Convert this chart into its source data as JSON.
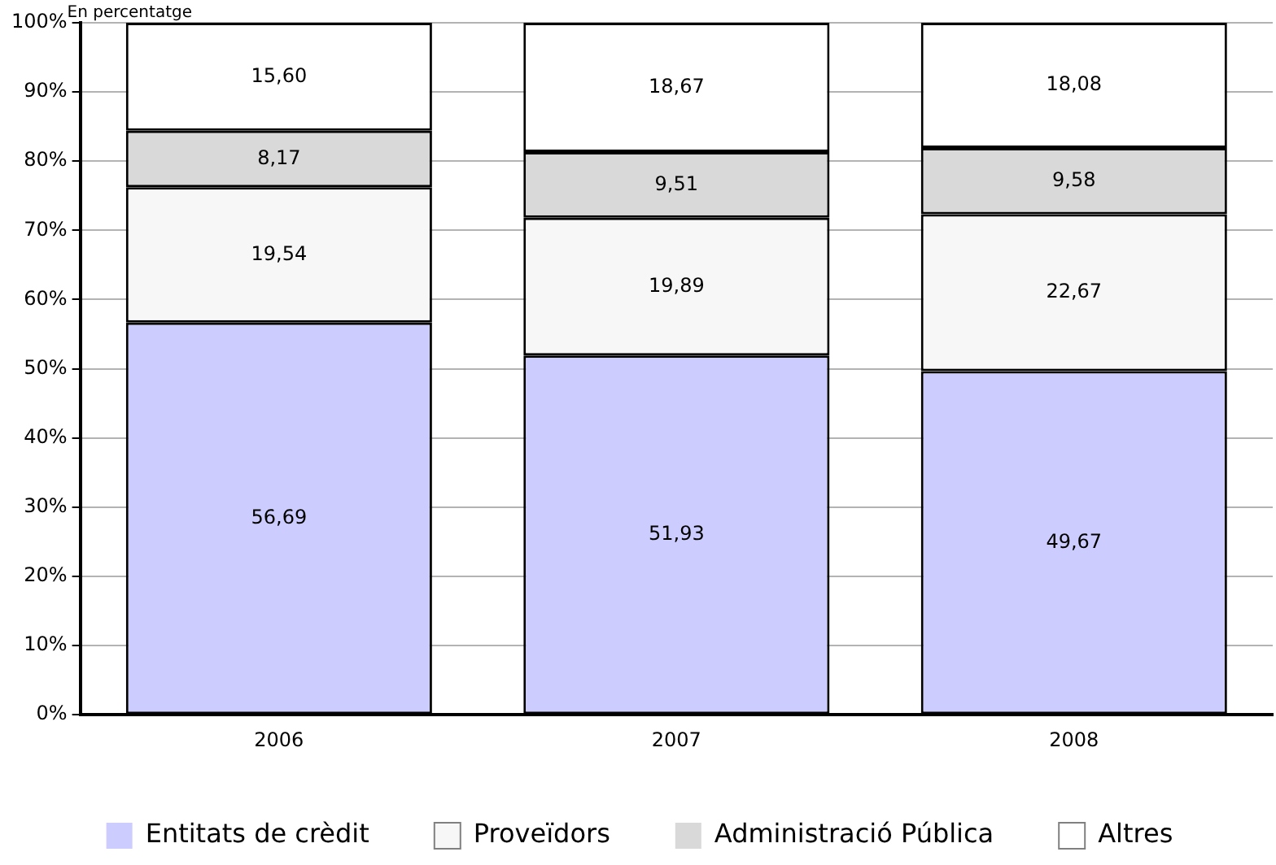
{
  "chart_data": {
    "type": "bar",
    "ylabel": "En percentatge",
    "categories": [
      "2006",
      "2007",
      "2008"
    ],
    "stacked": true,
    "series": [
      {
        "name": "Entitats de crèdit",
        "color": "#ccccff",
        "values": [
          56.69,
          51.93,
          49.67
        ],
        "value_labels": [
          "56,69",
          "51,93",
          "49,67"
        ]
      },
      {
        "name": "Proveïdors",
        "color": "#f7f7f7",
        "values": [
          19.54,
          19.89,
          22.67
        ],
        "value_labels": [
          "19,54",
          "19,89",
          "22,67"
        ]
      },
      {
        "name": "Administració Pública",
        "color": "#d9d9d9",
        "values": [
          8.17,
          9.51,
          9.58
        ],
        "value_labels": [
          "8,17",
          "9,51",
          "9,58"
        ]
      },
      {
        "name": "Altres",
        "color": "#ffffff",
        "values": [
          15.6,
          18.67,
          18.08
        ],
        "value_labels": [
          "15,60",
          "18,67",
          "18,08"
        ]
      }
    ],
    "ylim": [
      0,
      100
    ],
    "yticks": [
      {
        "value": 0,
        "label": "0%"
      },
      {
        "value": 10,
        "label": "10%"
      },
      {
        "value": 20,
        "label": "20%"
      },
      {
        "value": 30,
        "label": "30%"
      },
      {
        "value": 40,
        "label": "40%"
      },
      {
        "value": 50,
        "label": "50%"
      },
      {
        "value": 60,
        "label": "60%"
      },
      {
        "value": 70,
        "label": "70%"
      },
      {
        "value": 80,
        "label": "80%"
      },
      {
        "value": 90,
        "label": "90%"
      },
      {
        "value": 100,
        "label": "100%"
      }
    ],
    "grid": "y",
    "legend": "bottom"
  }
}
